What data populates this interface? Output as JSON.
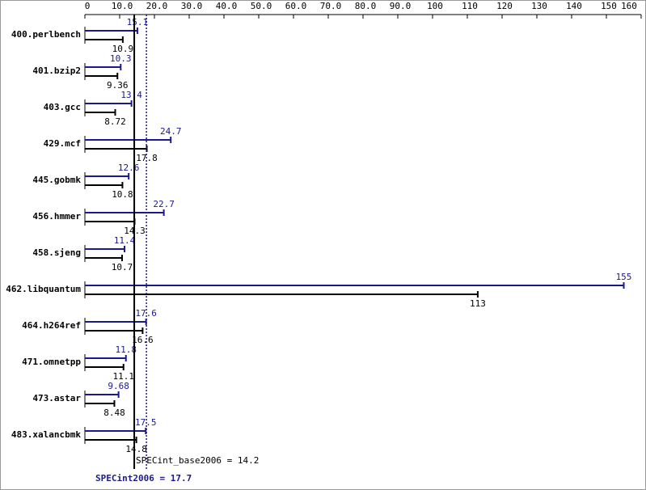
{
  "chart_data": {
    "type": "bar",
    "categories": [
      "400.perlbench",
      "401.bzip2",
      "403.gcc",
      "429.mcf",
      "445.gobmk",
      "456.hmmer",
      "458.sjeng",
      "462.libquantum",
      "464.h264ref",
      "471.omnetpp",
      "473.astar",
      "483.xalancbmk"
    ],
    "series": [
      {
        "color": "#1a1a8c",
        "values": [
          15.1,
          10.3,
          13.4,
          24.7,
          12.6,
          22.7,
          11.4,
          155,
          17.6,
          11.8,
          9.68,
          17.5
        ]
      },
      {
        "color": "#000000",
        "values": [
          10.9,
          9.36,
          8.72,
          17.8,
          10.8,
          14.3,
          10.7,
          113,
          16.6,
          11.1,
          8.48,
          14.8
        ]
      }
    ],
    "xlim": [
      0,
      160
    ],
    "xticks": [
      0,
      {
        "value": 10,
        "label": "10.0"
      },
      {
        "value": 20,
        "label": "20.0"
      },
      {
        "value": 30,
        "label": "30.0"
      },
      {
        "value": 40,
        "label": "40.0"
      },
      {
        "value": 50,
        "label": "50.0"
      },
      {
        "value": 60,
        "label": "60.0"
      },
      {
        "value": 70,
        "label": "70.0"
      },
      {
        "value": 80,
        "label": "80.0"
      },
      {
        "value": 90,
        "label": "90.0"
      },
      100,
      110,
      120,
      130,
      140,
      150,
      160
    ],
    "reference_lines": [
      {
        "label": "SPECint_base2006 = 14.2",
        "value": 14.2,
        "color": "#000000"
      },
      {
        "label": "SPECint2006 = 17.7",
        "value": 17.7,
        "color": "#1a1a8c"
      }
    ]
  }
}
